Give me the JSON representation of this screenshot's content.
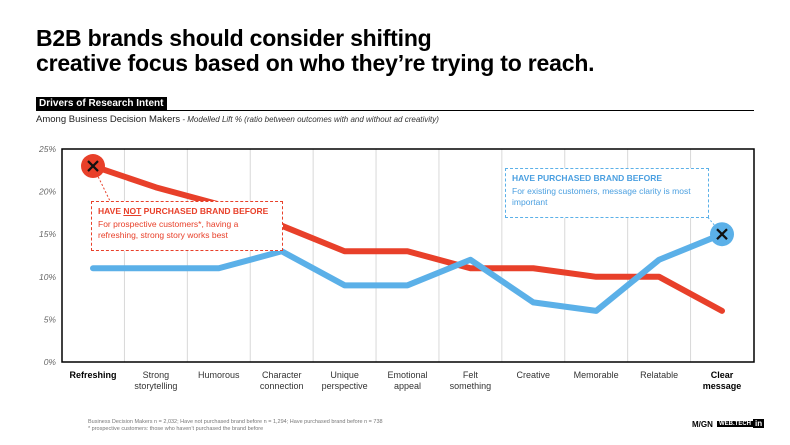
{
  "title_line1": "B2B brands should consider shifting",
  "title_line2": "creative focus based on who they’re trying to reach.",
  "section_label": "Drivers of Research Intent",
  "subtitle_main": "Among Business Decision Makers",
  "subtitle_note": " - Modelled Lift % (ratio between outcomes with and without ad creativity)",
  "callout_red": {
    "heading_pre": "HAVE ",
    "heading_not": "NOT",
    "heading_post": " PURCHASED BRAND BEFORE",
    "text": "For prospective customers*, having a refreshing, strong story works best"
  },
  "callout_blue": {
    "heading": "HAVE PURCHASED BRAND BEFORE",
    "text": "For existing customers, message clarity is most important"
  },
  "footnote1": "Business Decision Makers n = 2,032; Have not purchased brand before n = 1,294; Have purchased brand before n = 738",
  "footnote2": "* prospective customers: those who haven’t purchased the brand before",
  "logo1": "M/GN",
  "logo2": "WEB.TECH",
  "logo3": "in",
  "colors": {
    "red": "#e8402a",
    "blue": "#5bb0e8"
  },
  "chart_data": {
    "type": "line",
    "categories": [
      "Refreshing",
      "Strong storytelling",
      "Humorous",
      "Character connection",
      "Unique perspective",
      "Emotional appeal",
      "Felt something",
      "Creative",
      "Memorable",
      "Relatable",
      "Clear message"
    ],
    "category_lines": [
      [
        "Refreshing"
      ],
      [
        "Strong",
        "storytelling"
      ],
      [
        "Humorous"
      ],
      [
        "Character",
        "connection"
      ],
      [
        "Unique",
        "perspective"
      ],
      [
        "Emotional",
        "appeal"
      ],
      [
        "Felt",
        "something"
      ],
      [
        "Creative"
      ],
      [
        "Memorable"
      ],
      [
        "Relatable"
      ],
      [
        "Clear",
        "message"
      ]
    ],
    "bold_categories": [
      0,
      10
    ],
    "y_ticks": [
      "0%",
      "5%",
      "10%",
      "15%",
      "20%",
      "25%"
    ],
    "ylim": [
      0,
      25
    ],
    "series": [
      {
        "name": "HAVE NOT PURCHASED BRAND BEFORE",
        "color": "#e8402a",
        "values": [
          23,
          20.5,
          18.5,
          16,
          13,
          13,
          11,
          11,
          10,
          10,
          6
        ],
        "marker_index": 0
      },
      {
        "name": "HAVE PURCHASED BRAND BEFORE",
        "color": "#5bb0e8",
        "values": [
          11,
          11,
          11,
          13,
          9,
          9,
          12,
          7,
          6,
          12,
          15
        ],
        "marker_index": 10
      }
    ]
  }
}
